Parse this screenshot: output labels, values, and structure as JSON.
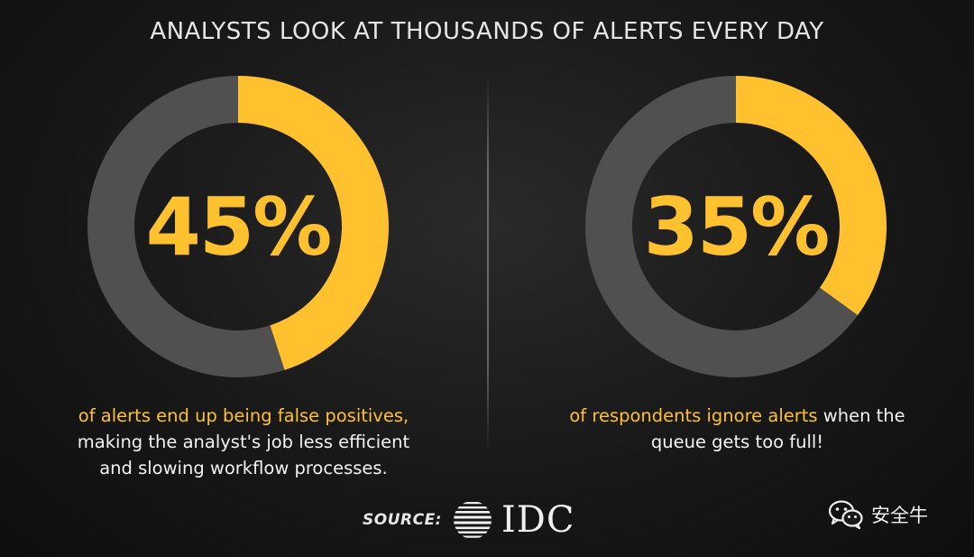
{
  "title": "ANALYSTS LOOK AT THOUSANDS OF ALERTS EVERY DAY",
  "colors": {
    "accent": "#ffc12e",
    "track": "#505050",
    "text": "#f2f2f2",
    "background": "#1a1a1a"
  },
  "chart_data": [
    {
      "type": "pie",
      "style": "donut",
      "value_percent": 45,
      "label": "45%",
      "caption_highlight": "of alerts end up being false positives,",
      "caption_lines": [
        "making the analyst's job less efficient",
        "and slowing workflow processes."
      ]
    },
    {
      "type": "pie",
      "style": "donut",
      "value_percent": 35,
      "label": "35%",
      "caption_highlight": "of respondents ignore alerts",
      "caption_rest": " when the",
      "caption_lines": [
        "queue gets too full!"
      ]
    }
  ],
  "source": {
    "label": "SOURCE:",
    "logo_text": "IDC",
    "logo_icon": "idc-globe-logo"
  },
  "watermark": {
    "icon": "wechat-icon",
    "text": "安全牛"
  }
}
